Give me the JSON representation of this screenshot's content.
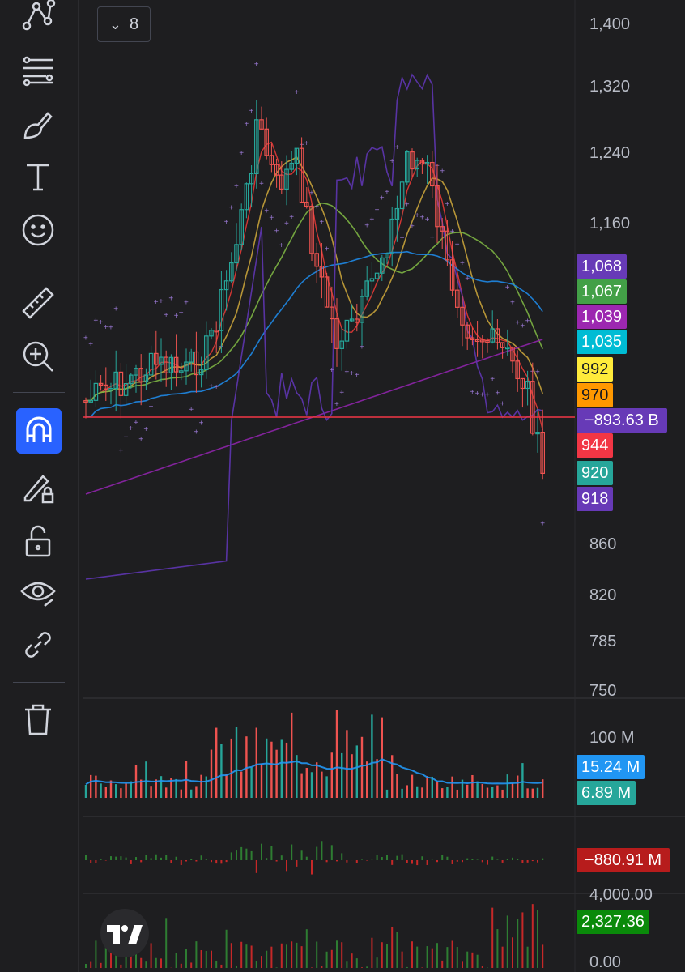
{
  "toolbar": {
    "items": [
      {
        "name": "pattern-tool-icon"
      },
      {
        "name": "fib-tool-icon"
      },
      {
        "name": "brush-tool-icon"
      },
      {
        "name": "text-tool-icon"
      },
      {
        "name": "emoji-tool-icon"
      },
      {
        "name": "ruler-tool-icon"
      },
      {
        "name": "zoom-in-icon"
      },
      {
        "name": "magnet-icon"
      },
      {
        "name": "lock-drawing-icon"
      },
      {
        "name": "unlock-icon"
      },
      {
        "name": "eye-icon"
      },
      {
        "name": "link-icon"
      },
      {
        "name": "trash-icon"
      }
    ]
  },
  "legend": {
    "count": "8"
  },
  "price_axis": {
    "labels": [
      "1,400",
      "1,320",
      "1,240",
      "1,160",
      "860",
      "820",
      "785",
      "750"
    ]
  },
  "badges": {
    "b1068": "1,068",
    "b1067": "1,067",
    "b1039": "1,039",
    "b1035": "1,035",
    "b992": "992",
    "b970": "970",
    "line": "−893.63 B",
    "b944": "944",
    "b920": "920",
    "b918": "918"
  },
  "volume": {
    "axis": "100 M",
    "ma": "15.24 M",
    "vol": "6.89 M"
  },
  "flow": {
    "value": "−880.91 M"
  },
  "lower": {
    "axis_top": "4,000.00",
    "value": "2,327.36",
    "axis_bottom": "0.00"
  },
  "colors": {
    "up": "#26a69a",
    "down": "#ef5350",
    "bg": "#1e1e20",
    "accent": "#2962ff",
    "purple": "#673ab7",
    "green": "#43a047",
    "magenta": "#9c27b0",
    "cyan": "#00bcd4",
    "yellow": "#ffeb3b",
    "orange": "#ff9800",
    "red": "#f23645",
    "blue": "#2196f3",
    "darkred": "#b71c1c",
    "darkgreen": "#0a8a0a"
  }
}
